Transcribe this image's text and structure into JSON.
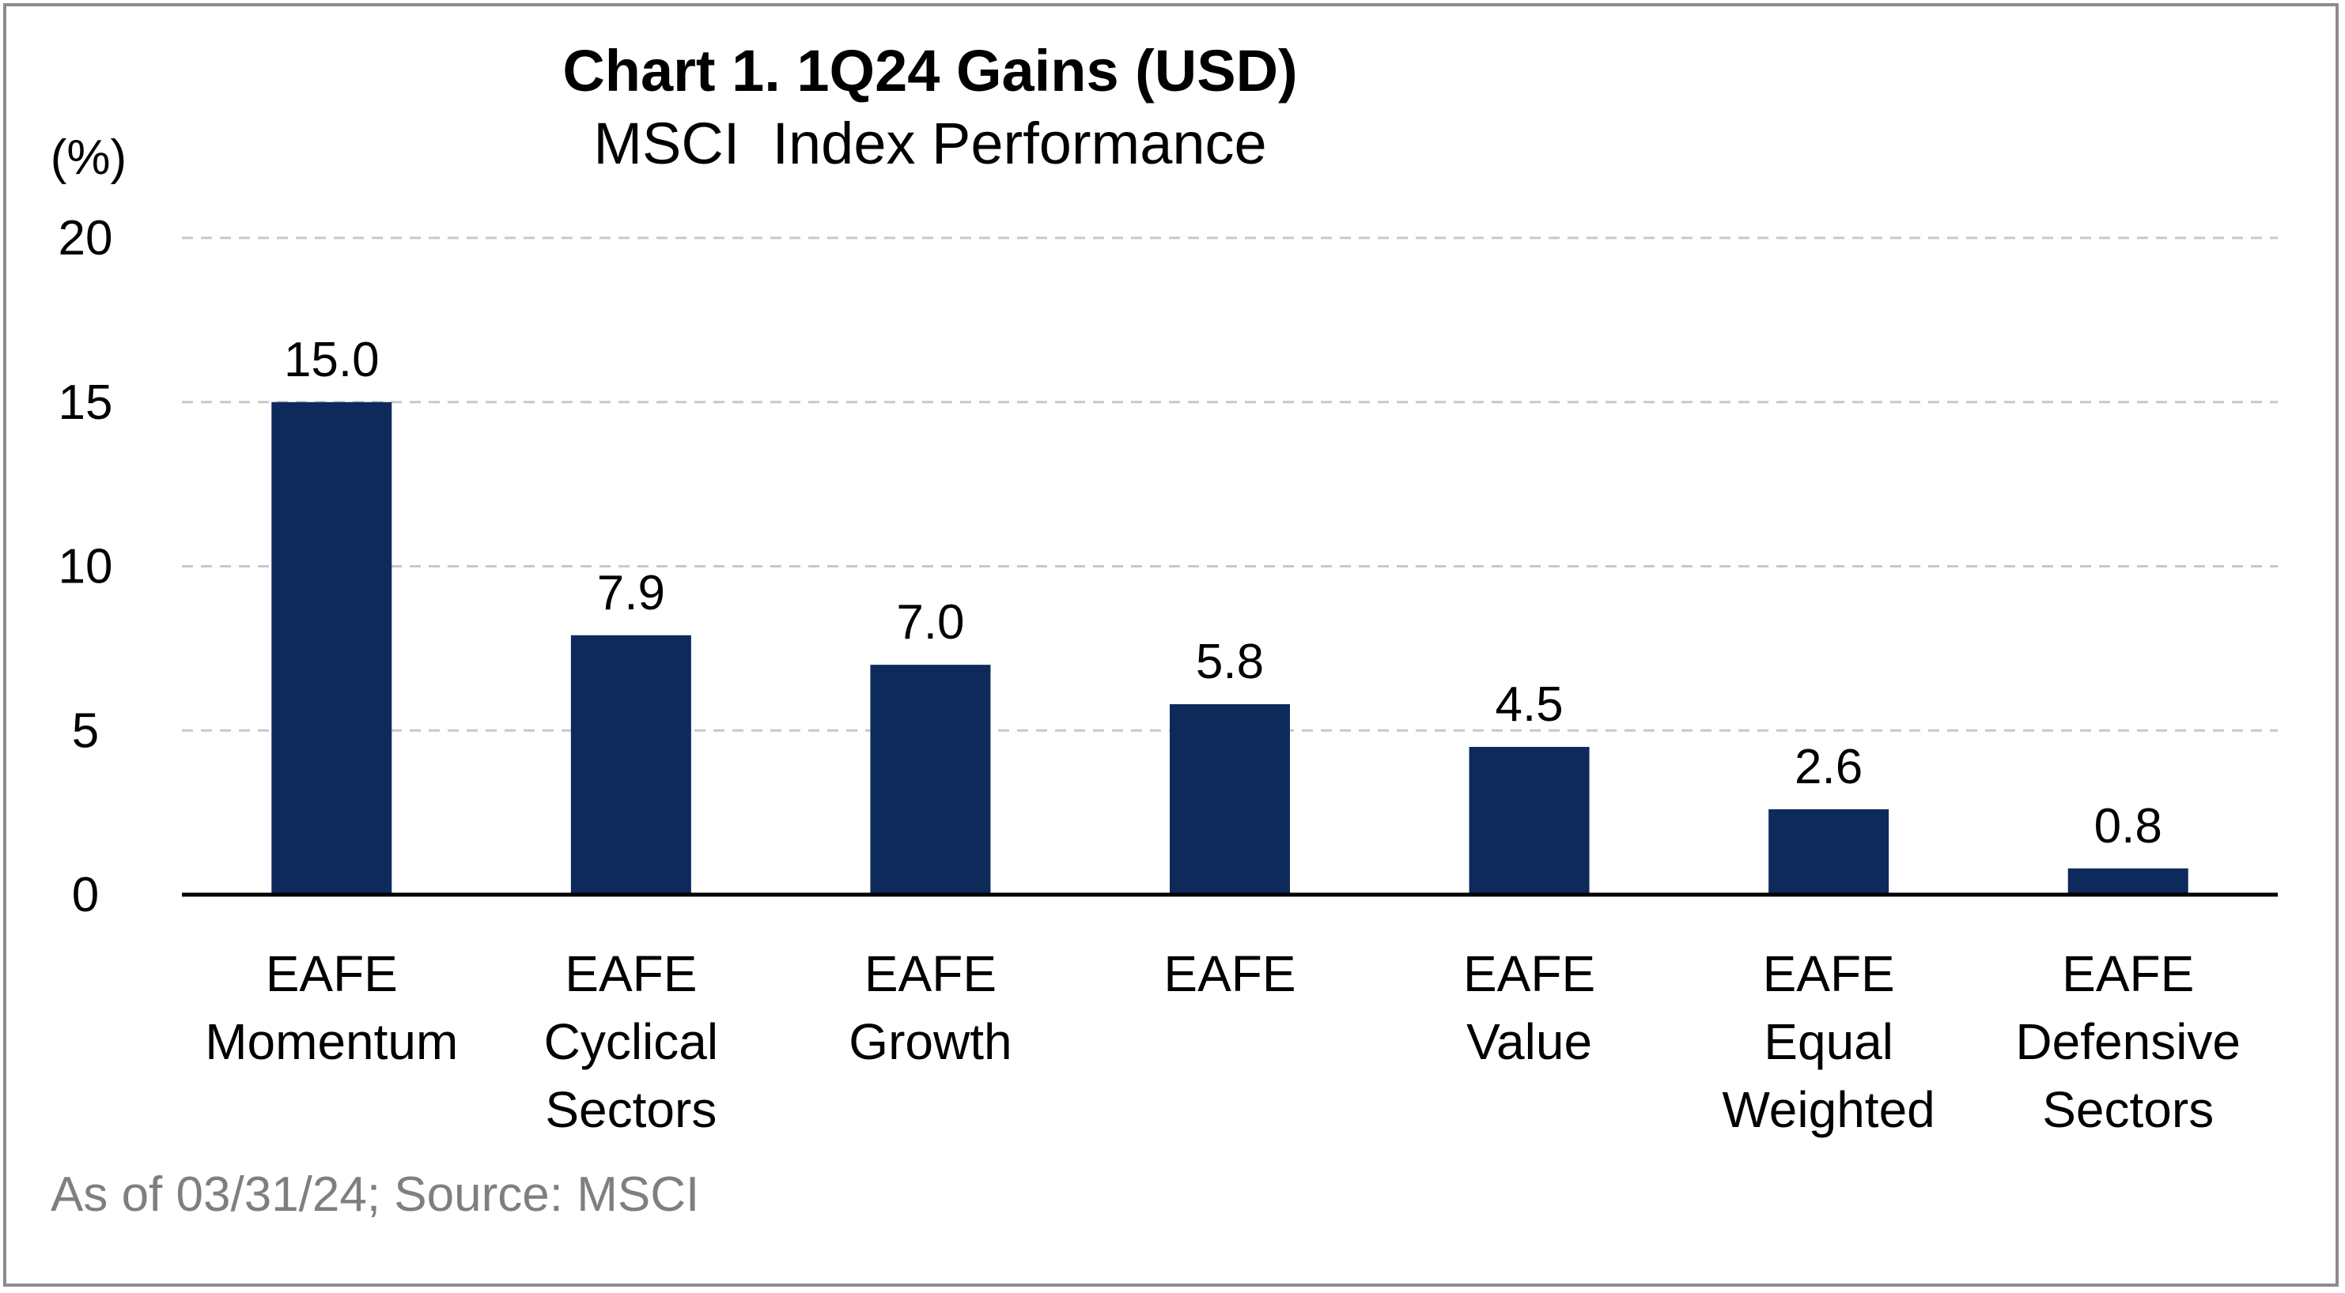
{
  "title": "Chart 1. 1Q24 Gains (USD)",
  "subtitle": "MSCI  Index Performance",
  "y_unit": "(%)",
  "footnote": "As of 03/31/24; Source: MSCI",
  "colors": {
    "bar": "#0d2a5b",
    "grid": "#c8c8c8",
    "axis": "#000000",
    "text": "#000000",
    "footnote": "#7f7f7f"
  },
  "chart_data": {
    "type": "bar",
    "categories": [
      [
        "EAFE",
        "Momentum"
      ],
      [
        "EAFE",
        "Cyclical",
        "Sectors"
      ],
      [
        "EAFE",
        "Growth"
      ],
      [
        "EAFE"
      ],
      [
        "EAFE",
        "Value"
      ],
      [
        "EAFE",
        "Equal",
        "Weighted"
      ],
      [
        "EAFE",
        "Defensive",
        "Sectors"
      ]
    ],
    "values": [
      15.0,
      7.9,
      7.0,
      5.8,
      4.5,
      2.6,
      0.8
    ],
    "value_labels": [
      "15.0",
      "7.9",
      "7.0",
      "5.8",
      "4.5",
      "2.6",
      "0.8"
    ],
    "yticks": [
      0,
      5,
      10,
      15,
      20
    ],
    "ylim": [
      0,
      20
    ],
    "grid": true,
    "grid_style": "dashed",
    "legend": "none"
  }
}
